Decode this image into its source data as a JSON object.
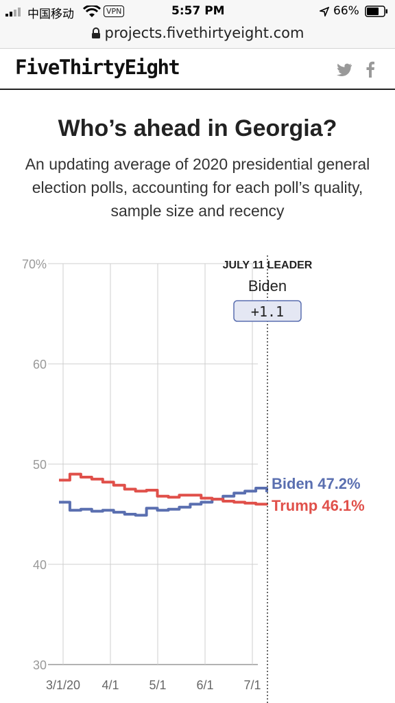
{
  "status_bar": {
    "carrier": "中国移动",
    "vpn": "VPN",
    "time": "5:57 PM",
    "battery": "66%"
  },
  "browser": {
    "url": "projects.fivethirtyeight.com"
  },
  "site": {
    "logo": "FiveThirtyEight"
  },
  "icons": [
    "lock-icon",
    "twitter-icon",
    "facebook-icon",
    "wifi-icon",
    "signal-icon",
    "battery-icon",
    "location-arrow-icon"
  ],
  "page": {
    "title": "Who’s ahead in Georgia?",
    "subtitle": "An updating average of 2020 presidential general election polls, accounting for each poll’s quality, sample size and recency"
  },
  "chart_data": {
    "type": "line",
    "title": "",
    "xlabel": "",
    "ylabel": "",
    "ylim": [
      30,
      70
    ],
    "yticks": [
      "70%",
      "60",
      "50",
      "40",
      "30"
    ],
    "xticks": [
      "3/1/20",
      "4/1",
      "5/1",
      "6/1",
      "7/1"
    ],
    "x": [
      "3/1",
      "3/8",
      "3/15",
      "3/22",
      "3/29",
      "4/5",
      "4/12",
      "4/19",
      "4/26",
      "5/3",
      "5/10",
      "5/17",
      "5/24",
      "5/31",
      "6/7",
      "6/14",
      "6/21",
      "6/28",
      "7/5",
      "7/11"
    ],
    "series": [
      {
        "name": "Biden",
        "color": "#5a6fb0",
        "label": "Biden 47.2%",
        "values": [
          46.2,
          45.4,
          45.5,
          45.3,
          45.4,
          45.2,
          45.0,
          44.9,
          45.6,
          45.4,
          45.5,
          45.7,
          46.0,
          46.2,
          46.5,
          46.8,
          47.1,
          47.3,
          47.6,
          47.2
        ]
      },
      {
        "name": "Trump",
        "color": "#e0504a",
        "label": "Trump 46.1%",
        "values": [
          48.4,
          49.0,
          48.7,
          48.5,
          48.2,
          47.9,
          47.5,
          47.3,
          47.4,
          46.8,
          46.7,
          46.9,
          46.9,
          46.6,
          46.5,
          46.3,
          46.2,
          46.1,
          46.0,
          46.1
        ]
      }
    ],
    "grid": true,
    "leader": {
      "heading": "JULY 11 LEADER",
      "name": "Biden",
      "margin": "+1.1"
    }
  }
}
